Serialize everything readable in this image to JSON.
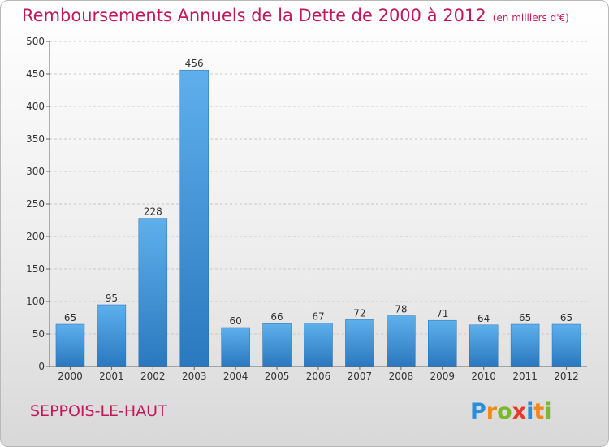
{
  "chart_data": {
    "type": "bar",
    "title": "Remboursements Annuels de la Dette de 2000 à 2012",
    "unit_label": "(en milliers d'€)",
    "categories": [
      "2000",
      "2001",
      "2002",
      "2003",
      "2004",
      "2005",
      "2006",
      "2007",
      "2008",
      "2009",
      "2010",
      "2011",
      "2012"
    ],
    "values": [
      65,
      95,
      228,
      456,
      60,
      66,
      67,
      72,
      78,
      71,
      64,
      65,
      65
    ],
    "ylim": [
      0,
      500
    ],
    "yticks": [
      0,
      50,
      100,
      150,
      200,
      250,
      300,
      350,
      400,
      450,
      500
    ],
    "grid": true,
    "bar_color": "#3d8fd6"
  },
  "commune": "SEPPOIS-LE-HAUT",
  "logo": {
    "letters": [
      "P",
      "r",
      "o",
      "x",
      "i",
      "t",
      "i"
    ],
    "colors": [
      "#2a8fd8",
      "#f08a1c",
      "#7cb82f",
      "#e8392b",
      "#2a8fd8",
      "#f08a1c",
      "#7cb82f"
    ]
  }
}
